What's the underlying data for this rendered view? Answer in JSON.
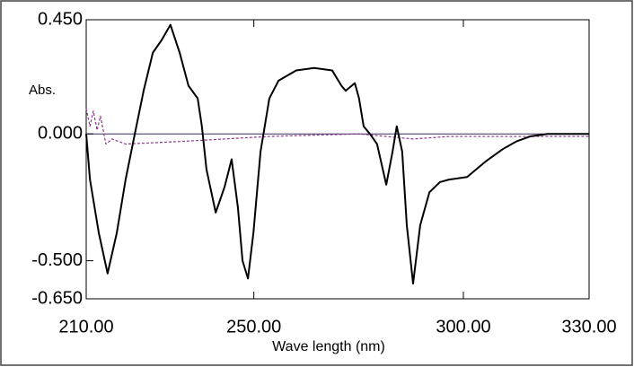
{
  "chart_data": {
    "type": "line",
    "ylabel": "Abs.",
    "xlabel": "Wave length (nm)",
    "xlim": [
      210,
      330
    ],
    "ylim": [
      -0.65,
      0.45
    ],
    "xticks": [
      {
        "value": 210,
        "label": "210.00"
      },
      {
        "value": 250,
        "label": "250.00"
      },
      {
        "value": 300,
        "label": "300.00"
      },
      {
        "value": 330,
        "label": "330.00"
      }
    ],
    "yticks": [
      {
        "value": 0.45,
        "label": "0.450"
      },
      {
        "value": 0,
        "label": "0.000"
      },
      {
        "value": -0.5,
        "label": "-0.500"
      },
      {
        "value": -0.65,
        "label": "-0.650"
      }
    ],
    "series": [
      {
        "color": "#000000",
        "style": "solid",
        "x": [
          210,
          210.9,
          213.0,
          215.1,
          217.3,
          219.4,
          221.6,
          223.7,
          225.9,
          228.0,
          230.1,
          232.3,
          234.4,
          236.6,
          237.6,
          238.7,
          240.9,
          243.0,
          244.7,
          246.2,
          247.3,
          248.6,
          249.9,
          251.6,
          253.7,
          255.9,
          260.1,
          264.4,
          268.7,
          270.9,
          271.9,
          274.1,
          275.1,
          276.2,
          277.7,
          279.4,
          281.6,
          283.1,
          284.1,
          285.4,
          286.5,
          288.0,
          289.7,
          291.9,
          294.4,
          296.6,
          300.9,
          305.2,
          309.4,
          312.6,
          315.9,
          320.1,
          330
        ],
        "values": [
          0.0,
          -0.18,
          -0.39,
          -0.55,
          -0.39,
          -0.18,
          0.0,
          0.17,
          0.32,
          0.37,
          0.43,
          0.32,
          0.19,
          0.14,
          0.03,
          -0.14,
          -0.31,
          -0.21,
          -0.1,
          -0.29,
          -0.5,
          -0.57,
          -0.39,
          -0.07,
          0.14,
          0.21,
          0.25,
          0.26,
          0.25,
          0.19,
          0.17,
          0.2,
          0.14,
          0.03,
          0.0,
          -0.04,
          -0.2,
          -0.07,
          0.03,
          -0.07,
          -0.36,
          -0.59,
          -0.36,
          -0.23,
          -0.19,
          -0.18,
          -0.17,
          -0.11,
          -0.06,
          -0.03,
          -0.01,
          0.0,
          0.0
        ]
      },
      {
        "color": "#8b3a8b",
        "style": "dashed",
        "x": [
          210,
          210.9,
          211.7,
          212.6,
          213.4,
          214.7,
          216.2,
          219.4,
          232.3,
          253.7,
          275.1,
          288.0,
          296.6,
          330
        ],
        "values": [
          0.1,
          0.03,
          0.09,
          0.015,
          0.07,
          -0.04,
          -0.02,
          -0.04,
          -0.03,
          -0.01,
          0.0,
          -0.02,
          -0.01,
          -0.01
        ]
      }
    ]
  }
}
